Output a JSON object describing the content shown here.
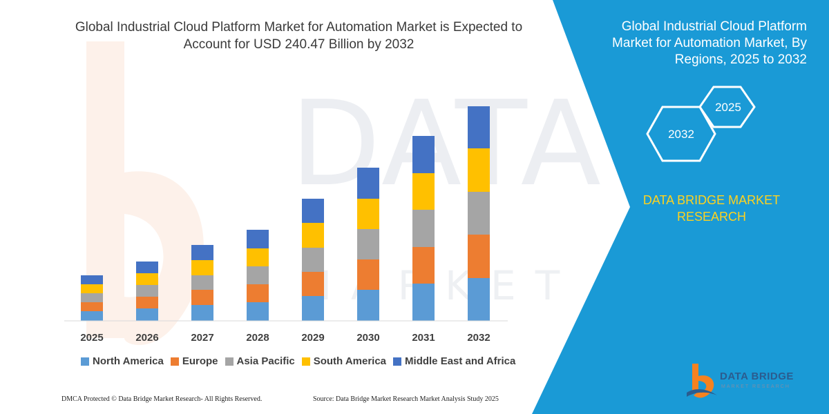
{
  "chart_title": "Global Industrial Cloud Platform Market for Automation Market is Expected to Account for USD 240.47 Billion by 2032",
  "panel": {
    "title": "Global Industrial Cloud Platform Market for Automation Market, By Regions, 2025 to 2032",
    "hex_labels": [
      "2025",
      "2032"
    ],
    "brand": "DATA BRIDGE MARKET RESEARCH"
  },
  "watermark": {
    "text": "DATA BRIDGE",
    "sub": "MARKET RESEARCH"
  },
  "footer": {
    "left": "DMCA Protected © Data Bridge Market Research- All Rights Reserved.",
    "right": "Source: Data Bridge Market Research Market Analysis Study 2025"
  },
  "logo": {
    "name": "DATA BRIDGE",
    "tagline": "MARKET RESEARCH"
  },
  "colors": {
    "panel": "#1a9ad6",
    "hex_stroke": "#ffffff",
    "brand_text": "#ffd21f"
  },
  "chart_data": {
    "type": "bar",
    "stacked": true,
    "categories": [
      "2025",
      "2026",
      "2027",
      "2028",
      "2029",
      "2030",
      "2031",
      "2032"
    ],
    "series": [
      {
        "name": "North America",
        "color": "#5b9bd5",
        "values": [
          14,
          18,
          23,
          27,
          36,
          45,
          54,
          62
        ]
      },
      {
        "name": "Europe",
        "color": "#ed7d31",
        "values": [
          13,
          17,
          22,
          26,
          35,
          44,
          53,
          63
        ]
      },
      {
        "name": "Asia Pacific",
        "color": "#a5a5a5",
        "values": [
          13,
          17,
          21,
          26,
          35,
          44,
          54,
          62
        ]
      },
      {
        "name": "South America",
        "color": "#ffc000",
        "values": [
          13,
          17,
          22,
          26,
          36,
          44,
          53,
          63
        ]
      },
      {
        "name": "Middle East and Africa",
        "color": "#4472c4",
        "values": [
          13,
          17,
          22,
          27,
          35,
          45,
          54,
          61
        ]
      }
    ],
    "ylim": [
      0,
      320
    ],
    "axis_visible": false,
    "grid": false,
    "legend_position": "bottom"
  }
}
